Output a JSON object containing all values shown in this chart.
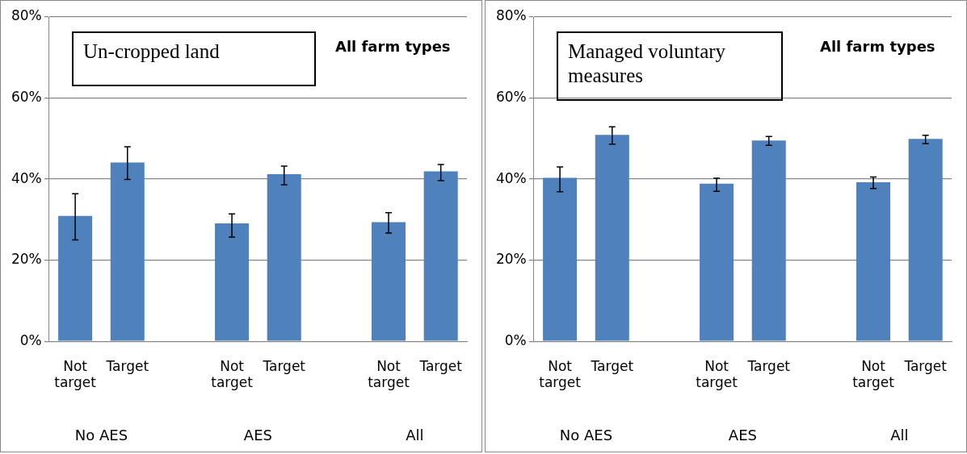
{
  "chart_data": [
    {
      "type": "bar",
      "title": "Un-cropped land",
      "subtitle": "All farm types",
      "categories": [
        "Not target",
        "Target",
        null,
        "Not target",
        "Target",
        null,
        "Not target",
        "Target"
      ],
      "values": [
        30.9,
        44.1,
        null,
        29.1,
        41.2,
        null,
        29.4,
        41.9
      ],
      "errors": [
        [
          25.0,
          36.4
        ],
        [
          39.9,
          48.0
        ],
        null,
        [
          25.7,
          31.4
        ],
        [
          38.6,
          43.2
        ],
        null,
        [
          26.7,
          31.7
        ],
        [
          39.6,
          43.6
        ]
      ],
      "color": "#4f81bd",
      "ylim": [
        0,
        80
      ],
      "yticks": [
        {
          "value": 0,
          "label": "0%"
        },
        {
          "value": 20,
          "label": "20%"
        },
        {
          "value": 40,
          "label": "40%"
        },
        {
          "value": 60,
          "label": "60%"
        },
        {
          "value": 80,
          "label": "80%"
        }
      ],
      "grid": "y",
      "annotations": [
        "No AES",
        "AES",
        "All"
      ]
    },
    {
      "type": "bar",
      "title": "Managed voluntary measures",
      "subtitle": "All farm types",
      "categories": [
        "Not target",
        "Target",
        null,
        "Not target",
        "Target",
        null,
        "Not target",
        "Target"
      ],
      "values": [
        40.3,
        50.9,
        null,
        38.9,
        49.5,
        null,
        39.2,
        49.9
      ],
      "errors": [
        [
          36.9,
          43.0
        ],
        [
          48.6,
          52.9
        ],
        null,
        [
          37.0,
          40.2
        ],
        [
          48.3,
          50.5
        ],
        null,
        [
          37.7,
          40.5
        ],
        [
          48.7,
          50.8
        ]
      ],
      "color": "#4f81bd",
      "ylim": [
        0,
        80
      ],
      "yticks": [
        {
          "value": 0,
          "label": "0%"
        },
        {
          "value": 20,
          "label": "20%"
        },
        {
          "value": 40,
          "label": "40%"
        },
        {
          "value": 60,
          "label": "60%"
        },
        {
          "value": 80,
          "label": "80%"
        }
      ],
      "grid": "y",
      "annotations": [
        "No AES",
        "AES",
        "All"
      ]
    }
  ]
}
